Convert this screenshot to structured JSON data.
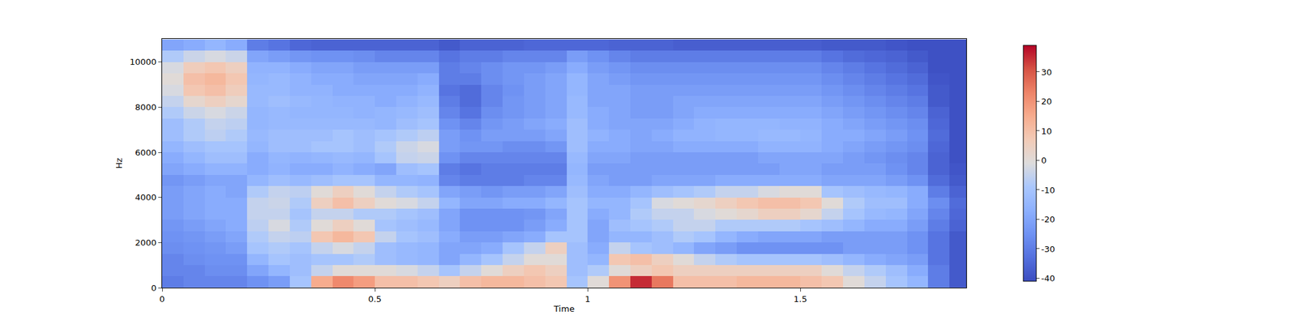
{
  "chart_data": {
    "type": "heatmap",
    "x_label": "Time",
    "y_label": "Hz",
    "xlim": [
      0,
      1.89
    ],
    "ylim": [
      0,
      11025
    ],
    "xticks": [
      0,
      0.5,
      1,
      1.5
    ],
    "yticks": [
      0,
      2000,
      4000,
      6000,
      8000,
      10000
    ],
    "colorbar": {
      "range": [
        -41,
        39
      ],
      "ticks": [
        -40,
        -30,
        -20,
        -10,
        0,
        10,
        20,
        30
      ]
    },
    "x": [
      0.025,
      0.075,
      0.125,
      0.175,
      0.225,
      0.275,
      0.325,
      0.375,
      0.425,
      0.475,
      0.525,
      0.575,
      0.625,
      0.675,
      0.725,
      0.775,
      0.825,
      0.875,
      0.925,
      0.975,
      1.025,
      1.075,
      1.125,
      1.175,
      1.225,
      1.275,
      1.325,
      1.375,
      1.425,
      1.475,
      1.525,
      1.575,
      1.625,
      1.675,
      1.725,
      1.775,
      1.825,
      1.875
    ],
    "y": [
      250,
      750,
      1250,
      1750,
      2250,
      2750,
      3250,
      3750,
      4250,
      4750,
      5250,
      5750,
      6250,
      6750,
      7250,
      7750,
      8250,
      8750,
      9250,
      9750,
      10250,
      10750
    ],
    "cells": [
      [
        -30,
        -28,
        -28,
        -26,
        -25,
        -24,
        -22,
        -22,
        -22,
        -24,
        -20,
        -18,
        -15,
        -12,
        -12,
        -8,
        -5,
        -2,
        0,
        -2,
        -8,
        -20
      ],
      [
        -28,
        -28,
        -26,
        -25,
        -24,
        -22,
        -20,
        -20,
        -20,
        -22,
        -18,
        -15,
        -12,
        -8,
        -8,
        -4,
        2,
        8,
        10,
        6,
        -4,
        -18
      ],
      [
        -28,
        -26,
        -25,
        -24,
        -22,
        -20,
        -18,
        -18,
        -18,
        -20,
        -16,
        -12,
        -10,
        -6,
        -5,
        -2,
        5,
        10,
        12,
        8,
        -2,
        -15
      ],
      [
        -28,
        -26,
        -25,
        -22,
        -20,
        -18,
        -18,
        -18,
        -20,
        -20,
        -16,
        -12,
        -10,
        -8,
        -6,
        -4,
        2,
        6,
        8,
        5,
        -4,
        -18
      ],
      [
        -25,
        -20,
        -15,
        -10,
        -8,
        -6,
        -5,
        -5,
        -8,
        -15,
        -18,
        -18,
        -15,
        -14,
        -15,
        -15,
        -14,
        -14,
        -15,
        -16,
        -20,
        -30
      ],
      [
        -22,
        -15,
        -10,
        -8,
        -5,
        -2,
        -5,
        -4,
        -5,
        -12,
        -16,
        -15,
        -12,
        -12,
        -14,
        -14,
        -12,
        -14,
        -14,
        -16,
        -22,
        -32
      ],
      [
        -10,
        -12,
        -12,
        -10,
        -6,
        -8,
        -10,
        -8,
        -6,
        -14,
        -18,
        -16,
        -12,
        -12,
        -14,
        -15,
        -14,
        -16,
        -16,
        -18,
        -24,
        -35
      ],
      [
        15,
        -5,
        -10,
        -5,
        8,
        0,
        -5,
        5,
        0,
        -12,
        -18,
        -15,
        -10,
        -12,
        -14,
        -15,
        -15,
        -16,
        -18,
        -20,
        -25,
        -36
      ],
      [
        22,
        0,
        -10,
        -2,
        12,
        5,
        -5,
        10,
        5,
        -10,
        -16,
        -14,
        -10,
        -10,
        -14,
        -15,
        -16,
        -18,
        -18,
        -20,
        -25,
        -36
      ],
      [
        18,
        0,
        -8,
        -5,
        8,
        0,
        -8,
        5,
        0,
        -10,
        -18,
        -15,
        -12,
        -12,
        -14,
        -16,
        -16,
        -18,
        -20,
        -22,
        -26,
        -36
      ],
      [
        10,
        0,
        -12,
        -12,
        -5,
        -10,
        -8,
        0,
        -5,
        -15,
        -20,
        -10,
        -8,
        -10,
        -15,
        -15,
        -18,
        -18,
        -20,
        -22,
        -28,
        -36
      ],
      [
        10,
        -2,
        -14,
        -14,
        -10,
        -12,
        -10,
        -2,
        -8,
        -15,
        -12,
        -5,
        -4,
        -8,
        -12,
        -14,
        -16,
        -18,
        -20,
        -22,
        -28,
        -36
      ],
      [
        8,
        -5,
        -15,
        -15,
        -12,
        -14,
        -12,
        -5,
        -10,
        -16,
        -10,
        -4,
        -2,
        -6,
        -10,
        -12,
        -14,
        -16,
        -18,
        -22,
        -28,
        -36
      ],
      [
        5,
        -10,
        -20,
        -20,
        -18,
        -20,
        -20,
        -15,
        -20,
        -28,
        -30,
        -25,
        -22,
        -22,
        -25,
        -28,
        -30,
        -32,
        -30,
        -30,
        -32,
        -38
      ],
      [
        10,
        -5,
        -15,
        -20,
        -22,
        -25,
        -25,
        -20,
        -22,
        -30,
        -32,
        -28,
        -24,
        -25,
        -28,
        -32,
        -34,
        -34,
        -30,
        -28,
        -30,
        -36
      ],
      [
        12,
        0,
        -10,
        -18,
        -22,
        -25,
        -25,
        -20,
        -24,
        -30,
        -30,
        -28,
        -24,
        -22,
        -24,
        -26,
        -28,
        -28,
        -26,
        -26,
        -30,
        -36
      ],
      [
        12,
        5,
        -5,
        -10,
        -20,
        -25,
        -25,
        -18,
        -22,
        -30,
        -30,
        -28,
        -26,
        -22,
        -22,
        -24,
        -24,
        -25,
        -24,
        -24,
        -28,
        -36
      ],
      [
        10,
        8,
        0,
        -5,
        -18,
        -22,
        -24,
        -18,
        -22,
        -28,
        -30,
        -28,
        -26,
        -22,
        -20,
        -22,
        -22,
        -22,
        -22,
        -24,
        -28,
        -35
      ],
      [
        8,
        5,
        0,
        5,
        -10,
        -18,
        -20,
        -15,
        -20,
        -28,
        -30,
        -28,
        -24,
        -20,
        -18,
        -20,
        -20,
        -20,
        -20,
        -22,
        -28,
        -35
      ],
      [
        -10,
        -12,
        -12,
        -12,
        -10,
        -10,
        -10,
        -10,
        -12,
        -14,
        -15,
        -14,
        -12,
        -12,
        -12,
        -14,
        -14,
        -15,
        -15,
        -18,
        -22,
        -35
      ],
      [
        0,
        -8,
        -15,
        -18,
        -20,
        -20,
        -18,
        -15,
        -18,
        -20,
        -22,
        -20,
        -18,
        -16,
        -18,
        -18,
        -20,
        -20,
        -20,
        -22,
        -25,
        -35
      ],
      [
        20,
        0,
        8,
        -5,
        -15,
        -12,
        -15,
        -15,
        -18,
        -22,
        -22,
        -20,
        -18,
        -18,
        -20,
        -20,
        -20,
        -20,
        -22,
        -24,
        -28,
        -36
      ],
      [
        35,
        5,
        10,
        -10,
        -15,
        -10,
        -8,
        -10,
        -15,
        -22,
        -22,
        -22,
        -20,
        -20,
        -20,
        -22,
        -22,
        -22,
        -24,
        -26,
        -30,
        -36
      ],
      [
        25,
        8,
        5,
        -12,
        -12,
        -8,
        -5,
        -2,
        -12,
        -20,
        -22,
        -22,
        -20,
        -18,
        -20,
        -22,
        -22,
        -22,
        -24,
        -26,
        -30,
        -36
      ],
      [
        10,
        5,
        0,
        -15,
        -8,
        -5,
        -5,
        0,
        -10,
        -20,
        -22,
        -22,
        -18,
        -16,
        -18,
        -20,
        -20,
        -22,
        -24,
        -26,
        -30,
        -37
      ],
      [
        10,
        5,
        -5,
        -20,
        -10,
        -5,
        -2,
        2,
        -8,
        -20,
        -22,
        -22,
        -18,
        -16,
        -16,
        -18,
        -20,
        -22,
        -24,
        -26,
        -30,
        -37
      ],
      [
        10,
        5,
        -8,
        -22,
        -15,
        -8,
        0,
        5,
        -5,
        -18,
        -22,
        -22,
        -18,
        -15,
        -15,
        -18,
        -20,
        -22,
        -24,
        -26,
        -30,
        -37
      ],
      [
        12,
        5,
        -10,
        -25,
        -18,
        -8,
        2,
        8,
        -5,
        -18,
        -22,
        -22,
        -18,
        -15,
        -15,
        -18,
        -20,
        -22,
        -24,
        -26,
        -30,
        -37
      ],
      [
        12,
        5,
        -10,
        -25,
        -20,
        -8,
        5,
        10,
        -2,
        -18,
        -22,
        -20,
        -16,
        -14,
        -15,
        -18,
        -20,
        -22,
        -24,
        -26,
        -30,
        -37
      ],
      [
        12,
        5,
        -10,
        -25,
        -20,
        -8,
        5,
        10,
        0,
        -18,
        -20,
        -20,
        -16,
        -14,
        -16,
        -18,
        -20,
        -22,
        -24,
        -26,
        -30,
        -37
      ],
      [
        10,
        5,
        -10,
        -25,
        -20,
        -10,
        2,
        8,
        0,
        -18,
        -20,
        -20,
        -16,
        -15,
        -16,
        -18,
        -20,
        -22,
        -24,
        -26,
        -30,
        -37
      ],
      [
        8,
        0,
        -12,
        -25,
        -22,
        -12,
        -5,
        0,
        -10,
        -20,
        -22,
        -20,
        -18,
        -18,
        -18,
        -20,
        -22,
        -24,
        -26,
        -28,
        -32,
        -38
      ],
      [
        0,
        -5,
        -15,
        -22,
        -22,
        -15,
        -10,
        -8,
        -12,
        -20,
        -22,
        -22,
        -20,
        -18,
        -20,
        -22,
        -24,
        -26,
        -28,
        -30,
        -34,
        -38
      ],
      [
        -5,
        -8,
        -18,
        -22,
        -22,
        -18,
        -14,
        -12,
        -14,
        -20,
        -22,
        -24,
        -22,
        -20,
        -22,
        -24,
        -26,
        -28,
        -30,
        -32,
        -35,
        -38
      ],
      [
        -10,
        -12,
        -20,
        -22,
        -22,
        -18,
        -15,
        -12,
        -15,
        -22,
        -25,
        -26,
        -24,
        -22,
        -24,
        -26,
        -28,
        -30,
        -32,
        -34,
        -36,
        -39
      ],
      [
        -15,
        -18,
        -22,
        -25,
        -25,
        -22,
        -20,
        -18,
        -18,
        -25,
        -28,
        -28,
        -26,
        -25,
        -26,
        -28,
        -30,
        -32,
        -34,
        -36,
        -38,
        -40
      ],
      [
        -30,
        -30,
        -32,
        -32,
        -32,
        -30,
        -28,
        -26,
        -30,
        -34,
        -36,
        -36,
        -35,
        -34,
        -35,
        -36,
        -38,
        -38,
        -39,
        -40,
        -40,
        -40
      ],
      [
        -38,
        -38,
        -38,
        -38,
        -38,
        -36,
        -35,
        -34,
        -36,
        -38,
        -39,
        -40,
        -40,
        -40,
        -40,
        -40,
        -40,
        -40,
        -40,
        -40,
        -40,
        -40
      ]
    ]
  }
}
